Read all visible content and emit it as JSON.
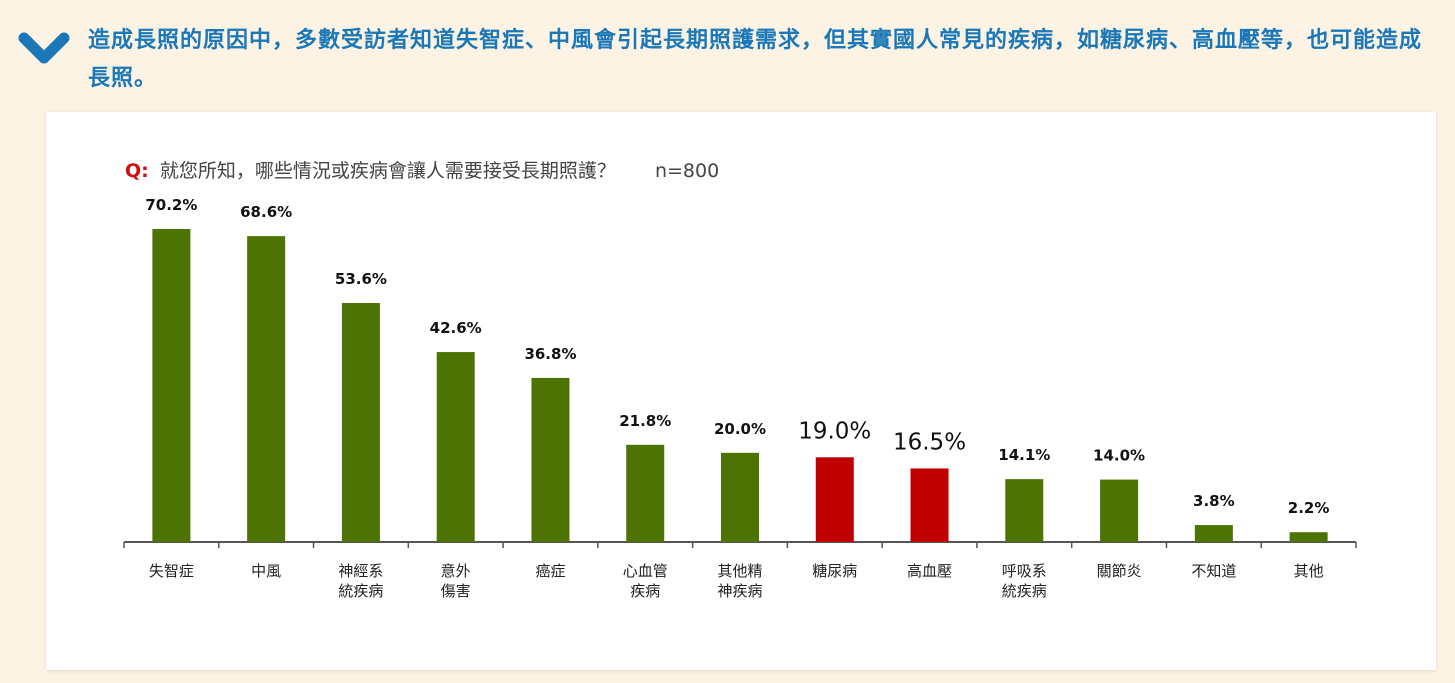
{
  "headline": {
    "text": "造成長照的原因中，多數受訪者知道失智症、中風會引起長期照護需求，但其實國人常見的疾病，如糖尿病、高血壓等，也可能造成長照。",
    "icon": "chevron-down-icon",
    "color": "#1b78b8"
  },
  "chart_data": {
    "type": "bar",
    "question_prefix": "Q:",
    "title": "就您所知，哪些情況或疾病會讓人需要接受長期照護？",
    "sample": "n=800",
    "categories": [
      [
        "失智症"
      ],
      [
        "中風"
      ],
      [
        "神經系",
        "統疾病"
      ],
      [
        "意外",
        "傷害"
      ],
      [
        "癌症"
      ],
      [
        "心血管",
        "疾病"
      ],
      [
        "其他精",
        "神疾病"
      ],
      [
        "糖尿病"
      ],
      [
        "高血壓"
      ],
      [
        "呼吸系",
        "統疾病"
      ],
      [
        "關節炎"
      ],
      [
        "不知道"
      ],
      [
        "其他"
      ]
    ],
    "values": [
      70.2,
      68.6,
      53.6,
      42.6,
      36.8,
      21.8,
      20.0,
      19.0,
      16.5,
      14.1,
      14.0,
      3.8,
      2.2
    ],
    "value_labels": [
      "70.2%",
      "68.6%",
      "53.6%",
      "42.6%",
      "36.8%",
      "21.8%",
      "20.0%",
      "19.0%",
      "16.5%",
      "14.1%",
      "14.0%",
      "3.8%",
      "2.2%"
    ],
    "highlighted": [
      false,
      false,
      false,
      false,
      false,
      false,
      false,
      true,
      true,
      false,
      false,
      false,
      false
    ],
    "ylim": [
      0,
      70.2
    ],
    "grid": false,
    "legend": "none",
    "colors": {
      "bar": "#4e7305",
      "highlight": "#c00000",
      "axis": "#555555"
    }
  }
}
